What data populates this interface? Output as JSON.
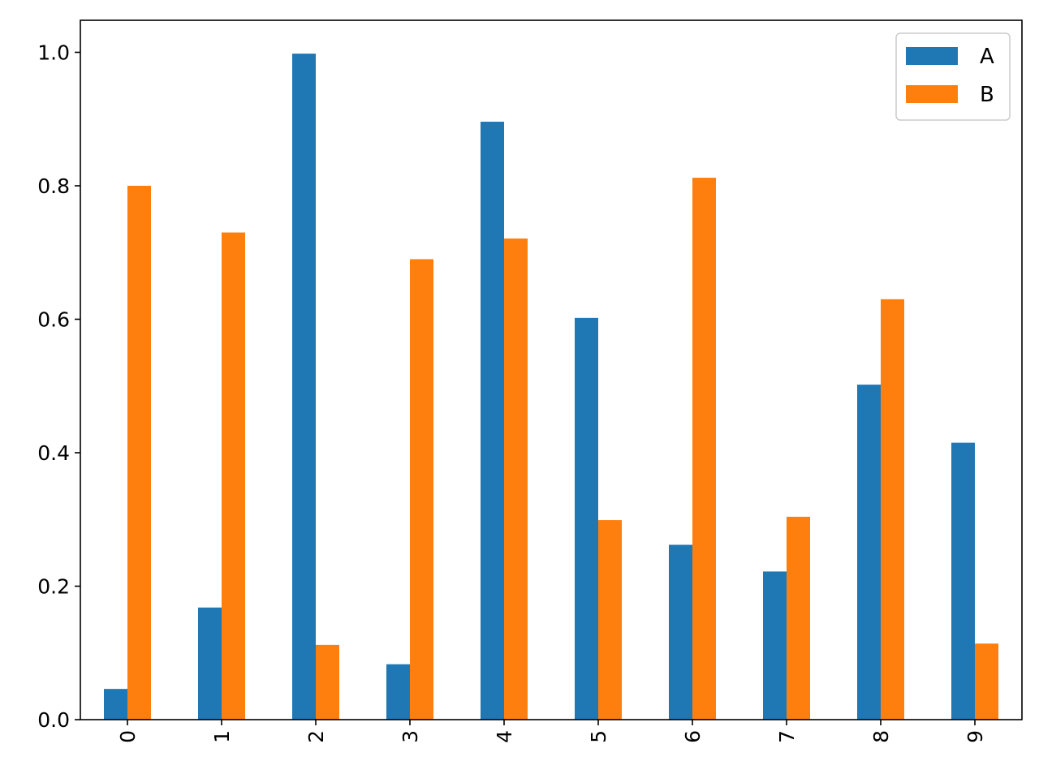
{
  "chart_data": {
    "type": "bar",
    "categories": [
      "0",
      "1",
      "2",
      "3",
      "4",
      "5",
      "6",
      "7",
      "8",
      "9"
    ],
    "series": [
      {
        "name": "A",
        "color": "#1f77b4",
        "values": [
          0.046,
          0.168,
          0.998,
          0.083,
          0.896,
          0.602,
          0.262,
          0.222,
          0.502,
          0.415
        ]
      },
      {
        "name": "B",
        "color": "#ff7f0e",
        "values": [
          0.8,
          0.73,
          0.112,
          0.69,
          0.721,
          0.299,
          0.812,
          0.304,
          0.63,
          0.114
        ]
      }
    ],
    "yticks": [
      "0.0",
      "0.2",
      "0.4",
      "0.6",
      "0.8",
      "1.0"
    ],
    "ylim": [
      0,
      1.048
    ],
    "xlabel": "",
    "ylabel": "",
    "title": "",
    "grid": false,
    "legend": "top-right",
    "x_tick_rotation": "vertical"
  }
}
